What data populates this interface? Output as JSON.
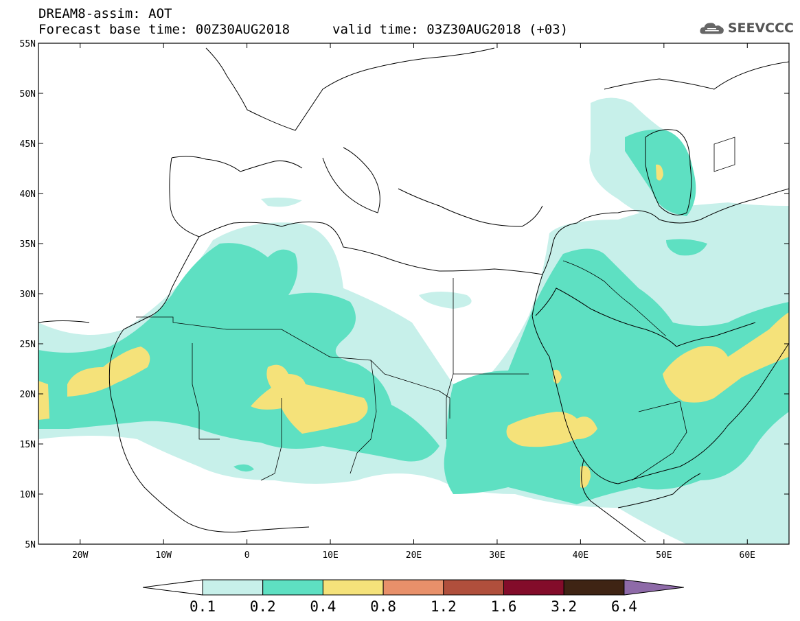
{
  "header": {
    "line1": "DREAM8-assim: AOT",
    "line2": "Forecast base time: 00Z30AUG2018",
    "valid": "valid time: 03Z30AUG2018 (+03)",
    "logo_text": "SEEVCCC",
    "logo_icon": "cloud-icon"
  },
  "map": {
    "lat_labels": [
      "55N",
      "50N",
      "45N",
      "40N",
      "35N",
      "30N",
      "25N",
      "20N",
      "15N",
      "10N",
      "5N"
    ],
    "lon_labels": [
      "20W",
      "10W",
      "0",
      "10E",
      "20E",
      "30E",
      "40E",
      "50E",
      "60E"
    ],
    "extent": {
      "lon_min": -25,
      "lon_max": 65,
      "lat_min": 5,
      "lat_max": 55
    },
    "field_colors": {
      "c1": "#c7f0ea",
      "c2": "#5ee0c2",
      "c3": "#f5e27a"
    }
  },
  "colorbar": {
    "colors": [
      "#ffffff",
      "#c7f0ea",
      "#5ee0c2",
      "#f5e27a",
      "#e8906a",
      "#b04f3c",
      "#830c2a",
      "#3f2414",
      "#8e6aa8"
    ],
    "labels": [
      "0.1",
      "0.2",
      "0.4",
      "0.8",
      "1.2",
      "1.6",
      "3.2",
      "6.4"
    ]
  }
}
